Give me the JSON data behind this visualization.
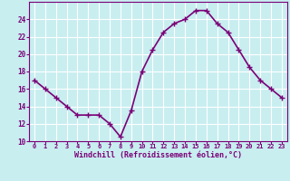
{
  "x": [
    0,
    1,
    2,
    3,
    4,
    5,
    6,
    7,
    8,
    9,
    10,
    11,
    12,
    13,
    14,
    15,
    16,
    17,
    18,
    19,
    20,
    21,
    22,
    23
  ],
  "y": [
    17,
    16,
    15,
    14,
    13,
    13,
    13,
    12,
    10.5,
    13.5,
    18,
    20.5,
    22.5,
    23.5,
    24,
    25,
    25,
    23.5,
    22.5,
    20.5,
    18.5,
    17,
    16,
    15
  ],
  "line_color": "#7b0077",
  "marker": "+",
  "marker_size": 4,
  "bg_color": "#c8eef0",
  "grid_color": "#ffffff",
  "xlabel": "Windchill (Refroidissement éolien,°C)",
  "xlabel_color": "#7b0077",
  "tick_color": "#7b0077",
  "ylim": [
    10,
    26
  ],
  "xlim": [
    -0.5,
    23.5
  ],
  "yticks": [
    10,
    12,
    14,
    16,
    18,
    20,
    22,
    24
  ],
  "xticks": [
    0,
    1,
    2,
    3,
    4,
    5,
    6,
    7,
    8,
    9,
    10,
    11,
    12,
    13,
    14,
    15,
    16,
    17,
    18,
    19,
    20,
    21,
    22,
    23
  ],
  "xtick_labels": [
    "0",
    "1",
    "2",
    "3",
    "4",
    "5",
    "6",
    "7",
    "8",
    "9",
    "10",
    "11",
    "12",
    "13",
    "14",
    "15",
    "16",
    "17",
    "18",
    "19",
    "20",
    "21",
    "22",
    "23"
  ],
  "line_width": 1.2
}
